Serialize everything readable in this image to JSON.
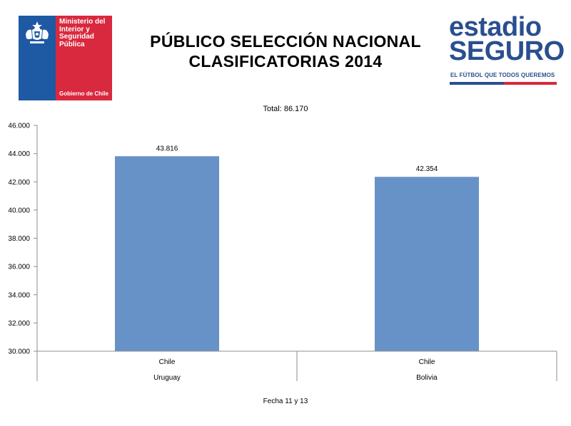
{
  "header": {
    "title_line1": "PÚBLICO SELECCIÓN NACIONAL",
    "title_line2": "CLASIFICATORIAS 2014"
  },
  "gov_logo": {
    "ministry_text": "Ministerio del Interior y Seguridad Pública",
    "gobierno_text": "Gobierno de Chile",
    "colors": {
      "blue": "#1d5aa3",
      "red": "#d9293e"
    }
  },
  "estadio_logo": {
    "word1": "estadio",
    "word2": "SEGURO",
    "tagline": "EL FÚTBOL QUE TODOS QUEREMOS",
    "colors": {
      "blue": "#2a4f8f",
      "red": "#d9293e"
    }
  },
  "chart_data": {
    "type": "bar",
    "subtitle": "Total: 86.170",
    "footer": "Fecha 11 y 13",
    "categories": [
      {
        "top": "Chile",
        "bottom": "Uruguay"
      },
      {
        "top": "Chile",
        "bottom": "Bolivia"
      }
    ],
    "values": [
      43816,
      42354
    ],
    "value_labels": [
      "43.816",
      "42.354"
    ],
    "ylim": [
      30000,
      46000
    ],
    "yticks": [
      30000,
      32000,
      34000,
      36000,
      38000,
      40000,
      42000,
      44000,
      46000
    ],
    "ytick_labels": [
      "30.000",
      "32.000",
      "34.000",
      "36.000",
      "38.000",
      "40.000",
      "42.000",
      "44.000",
      "46.000"
    ],
    "bar_color": "#6792c8",
    "grid": false
  }
}
